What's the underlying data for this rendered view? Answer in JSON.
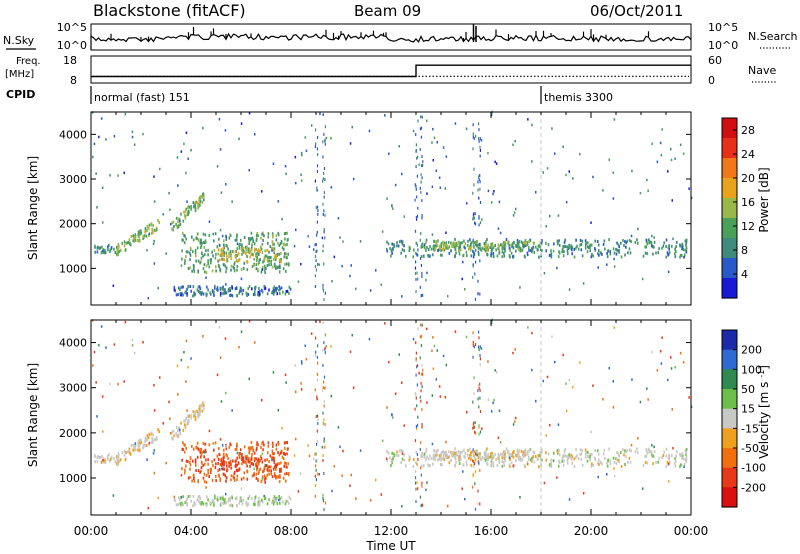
{
  "header": {
    "station": "Blackstone (fitACF)",
    "beam": "Beam 09",
    "date": "06/Oct/2011"
  },
  "top_panels": {
    "nsky_label": "N.Sky",
    "nsearch_label": "N.Search",
    "nsky_ticks": [
      "10^5",
      "10^0"
    ],
    "nsearch_ticks": [
      "10^5",
      "10^0"
    ],
    "freq_label_line1": "Freq.",
    "freq_label_line2": "[MHz]",
    "freq_ticks": [
      "18",
      "8"
    ],
    "nave_label": "Nave",
    "nave_ticks": [
      "60",
      "0"
    ],
    "cpid_label": "CPID",
    "cpid_segments": [
      {
        "label": "normal (fast) 151",
        "start_hour": 0,
        "end_hour": 18
      },
      {
        "label": "themis 3300",
        "start_hour": 18,
        "end_hour": 24
      }
    ],
    "freq_mhz": [
      {
        "start_hour": 0,
        "end_hour": 13,
        "value": 10.4
      },
      {
        "start_hour": 13,
        "end_hour": 24,
        "value": 14.6
      }
    ],
    "nave_typical": 15
  },
  "chart_data": [
    {
      "type": "heatmap",
      "panel": "power",
      "ylabel": "Slant Range [km]",
      "xlabel": "Time UT",
      "x_ticks": [
        "00:00",
        "04:00",
        "08:00",
        "12:00",
        "16:00",
        "20:00",
        "00:00"
      ],
      "xlim_hours": [
        0,
        24
      ],
      "y_ticks": [
        1000,
        2000,
        3000,
        4000
      ],
      "ylim_km": [
        180,
        4500
      ],
      "colorbar_label": "Power [dB]",
      "colorbar_ticks": [
        4,
        8,
        12,
        16,
        20,
        24,
        28
      ],
      "colorbar_range": [
        0,
        30
      ],
      "colors": [
        "#1a1ad6",
        "#2a5ac8",
        "#3f8a7a",
        "#4aa05a",
        "#9ab84a",
        "#e8a21c",
        "#f07818",
        "#e83018",
        "#d01010"
      ]
    },
    {
      "type": "heatmap",
      "panel": "velocity",
      "ylabel": "Slant Range [km]",
      "xlabel": "Time UT",
      "x_ticks": [
        "00:00",
        "04:00",
        "08:00",
        "12:00",
        "16:00",
        "20:00",
        "00:00"
      ],
      "xlim_hours": [
        0,
        24
      ],
      "y_ticks": [
        1000,
        2000,
        3000,
        4000
      ],
      "ylim_km": [
        180,
        4500
      ],
      "colorbar_label": "Velocity [m s^-1]",
      "colorbar_ticks": [
        "200",
        "100",
        "50",
        "15",
        "-15",
        "-50",
        "-100",
        "-200"
      ],
      "colors": [
        "#1a2aa8",
        "#2f6ad0",
        "#2e8a50",
        "#6cc04a",
        "#c8c8c4",
        "#f0a020",
        "#f07010",
        "#e83a18",
        "#d81010"
      ]
    }
  ],
  "echo_regions": [
    {
      "name": "near-range band",
      "start_hour": 0.1,
      "end_hour": 1.1,
      "range_km": [
        1340,
        1520
      ],
      "power_db": 9,
      "velocity": -5
    },
    {
      "name": "rising arc",
      "start_hour": 1.0,
      "end_hour": 2.7,
      "range_km": [
        1400,
        2000
      ],
      "power_db": 14,
      "velocity": -5
    },
    {
      "name": "rising arc 2",
      "start_hour": 3.2,
      "end_hour": 4.5,
      "range_km": [
        1900,
        2600
      ],
      "power_db": 13,
      "velocity": -8
    },
    {
      "name": "main patch",
      "start_hour": 3.6,
      "end_hour": 7.9,
      "range_km": [
        900,
        1800
      ],
      "power_db": 11,
      "velocity": -70
    },
    {
      "name": "main patch core",
      "start_hour": 5.0,
      "end_hour": 7.8,
      "range_km": [
        1150,
        1450
      ],
      "power_db": 16,
      "velocity": -90
    },
    {
      "name": "low band",
      "start_hour": 3.3,
      "end_hour": 8.0,
      "range_km": [
        380,
        600
      ],
      "power_db": 7,
      "velocity": 10
    },
    {
      "name": "long band",
      "start_hour": 11.8,
      "end_hour": 23.8,
      "range_km": [
        1250,
        1650
      ],
      "power_db": 9,
      "velocity": 0
    },
    {
      "name": "long band core",
      "start_hour": 13.2,
      "end_hour": 18.0,
      "range_km": [
        1400,
        1600
      ],
      "power_db": 13,
      "velocity": -5
    }
  ]
}
